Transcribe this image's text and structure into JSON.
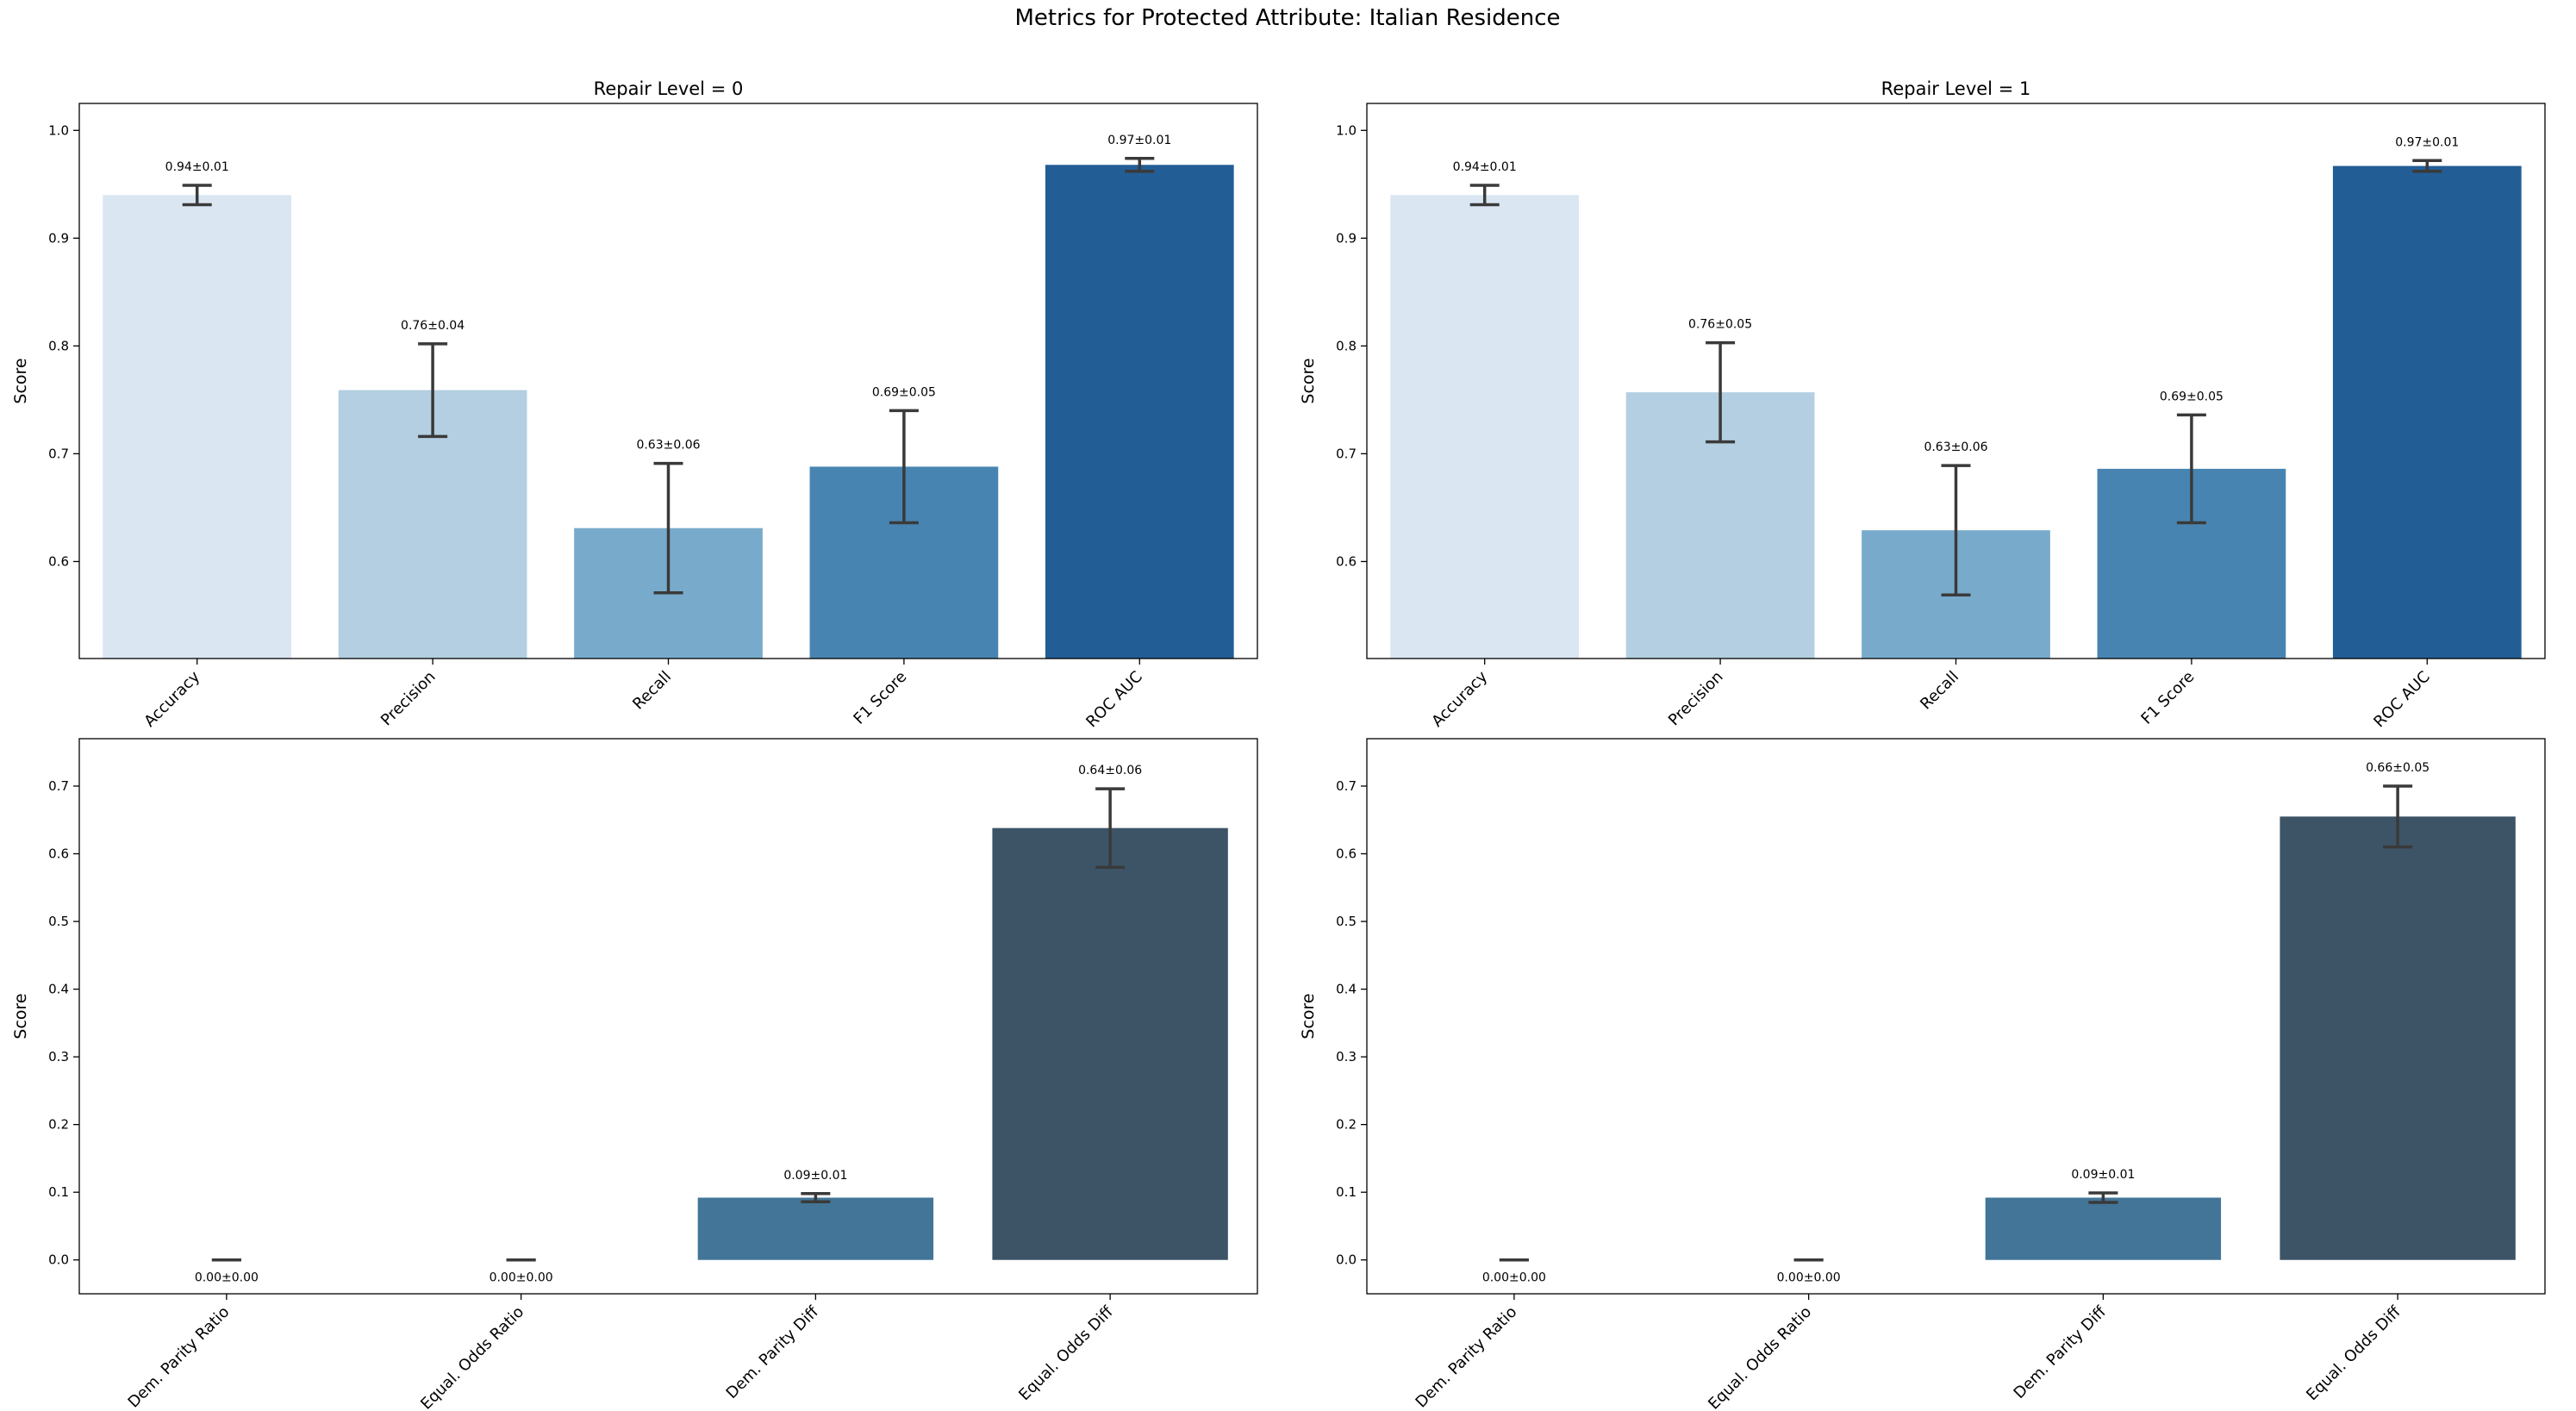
{
  "figure": {
    "title": "Metrics for Protected Attribute: Italian Residence"
  },
  "chart_data": [
    {
      "type": "bar",
      "title": "Repair Level = 0",
      "xlabel": "",
      "ylabel": "Score",
      "ylim": [
        0.51,
        1.025
      ],
      "yticks": [
        0.6,
        0.7,
        0.8,
        0.9,
        1.0
      ],
      "ytick_labels": [
        "0.6",
        "0.7",
        "0.8",
        "0.9",
        "1.0"
      ],
      "categories": [
        "Accuracy",
        "Precision",
        "Recall",
        "F1 Score",
        "ROC AUC"
      ],
      "values": [
        0.94,
        0.759,
        0.631,
        0.688,
        0.968
      ],
      "errors": [
        0.009,
        0.043,
        0.06,
        0.052,
        0.006
      ],
      "labels": [
        "0.94±0.01",
        "0.76±0.04",
        "0.63±0.06",
        "0.69±0.05",
        "0.97±0.01"
      ],
      "colors": [
        "#dae6f2",
        "#b3cfe1",
        "#78abcb",
        "#4884b2",
        "#235d95"
      ],
      "grid": false,
      "error_bars": true
    },
    {
      "type": "bar",
      "title": "Repair Level = 1",
      "xlabel": "",
      "ylabel": "Score",
      "ylim": [
        0.51,
        1.025
      ],
      "yticks": [
        0.6,
        0.7,
        0.8,
        0.9,
        1.0
      ],
      "ytick_labels": [
        "0.6",
        "0.7",
        "0.8",
        "0.9",
        "1.0"
      ],
      "categories": [
        "Accuracy",
        "Precision",
        "Recall",
        "F1 Score",
        "ROC AUC"
      ],
      "values": [
        0.94,
        0.757,
        0.629,
        0.686,
        0.967
      ],
      "errors": [
        0.009,
        0.046,
        0.06,
        0.05,
        0.005
      ],
      "labels": [
        "0.94±0.01",
        "0.76±0.05",
        "0.63±0.06",
        "0.69±0.05",
        "0.97±0.01"
      ],
      "colors": [
        "#dae6f2",
        "#b3cfe1",
        "#78abcb",
        "#4884b2",
        "#235d95"
      ],
      "grid": false,
      "error_bars": true
    },
    {
      "type": "bar",
      "title": "",
      "xlabel": "",
      "ylabel": "Score",
      "ylim": [
        -0.05,
        0.77
      ],
      "yticks": [
        0.0,
        0.1,
        0.2,
        0.3,
        0.4,
        0.5,
        0.6,
        0.7
      ],
      "ytick_labels": [
        "0.0",
        "0.1",
        "0.2",
        "0.3",
        "0.4",
        "0.5",
        "0.6",
        "0.7"
      ],
      "categories": [
        "Dem. Parity Ratio",
        "Equal. Odds Ratio",
        "Dem. Parity Diff",
        "Equal. Odds Diff"
      ],
      "values": [
        0.0,
        0.0,
        0.092,
        0.638
      ],
      "errors": [
        0.0,
        0.0,
        0.006,
        0.058
      ],
      "labels": [
        "0.00±0.00",
        "0.00±0.00",
        "0.09±0.01",
        "0.64±0.06"
      ],
      "colors": [
        "#5c9fc9",
        "#4a8bba",
        "#427597",
        "#3d5467"
      ],
      "grid": false,
      "error_bars": true
    },
    {
      "type": "bar",
      "title": "",
      "xlabel": "",
      "ylabel": "Score",
      "ylim": [
        -0.05,
        0.77
      ],
      "yticks": [
        0.0,
        0.1,
        0.2,
        0.3,
        0.4,
        0.5,
        0.6,
        0.7
      ],
      "ytick_labels": [
        "0.0",
        "0.1",
        "0.2",
        "0.3",
        "0.4",
        "0.5",
        "0.6",
        "0.7"
      ],
      "categories": [
        "Dem. Parity Ratio",
        "Equal. Odds Ratio",
        "Dem. Parity Diff",
        "Equal. Odds Diff"
      ],
      "values": [
        0.0,
        0.0,
        0.092,
        0.655
      ],
      "errors": [
        0.0,
        0.0,
        0.007,
        0.045
      ],
      "labels": [
        "0.00±0.00",
        "0.00±0.00",
        "0.09±0.01",
        "0.66±0.05"
      ],
      "colors": [
        "#5c9fc9",
        "#4a8bba",
        "#427597",
        "#3d5467"
      ],
      "grid": false,
      "error_bars": true
    }
  ]
}
